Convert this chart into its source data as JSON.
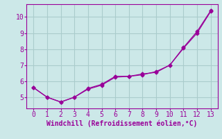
{
  "line1_x": [
    0,
    1,
    2,
    3,
    4,
    5,
    6,
    7,
    8,
    9,
    10,
    11,
    12,
    13
  ],
  "line1_y": [
    5.6,
    5.0,
    4.7,
    5.0,
    5.5,
    5.75,
    6.25,
    6.3,
    6.4,
    6.6,
    7.0,
    8.1,
    9.1,
    10.4
  ],
  "line2_x": [
    0,
    1,
    2,
    3,
    4,
    5,
    6,
    7,
    8,
    9,
    10,
    11,
    12,
    13
  ],
  "line2_y": [
    5.6,
    5.0,
    4.7,
    5.0,
    5.55,
    5.8,
    6.3,
    6.3,
    6.45,
    6.55,
    7.0,
    8.05,
    9.0,
    10.35
  ],
  "line_color": "#990099",
  "bg_color": "#cce8e8",
  "grid_color": "#aacccc",
  "xlabel": "Windchill (Refroidissement éolien,°C)",
  "xlim": [
    -0.5,
    13.5
  ],
  "ylim": [
    4.3,
    10.8
  ],
  "yticks": [
    5,
    6,
    7,
    8,
    9,
    10
  ],
  "xticks": [
    0,
    1,
    2,
    3,
    4,
    5,
    6,
    7,
    8,
    9,
    10,
    11,
    12,
    13
  ],
  "xlabel_fontsize": 7,
  "tick_fontsize": 7
}
